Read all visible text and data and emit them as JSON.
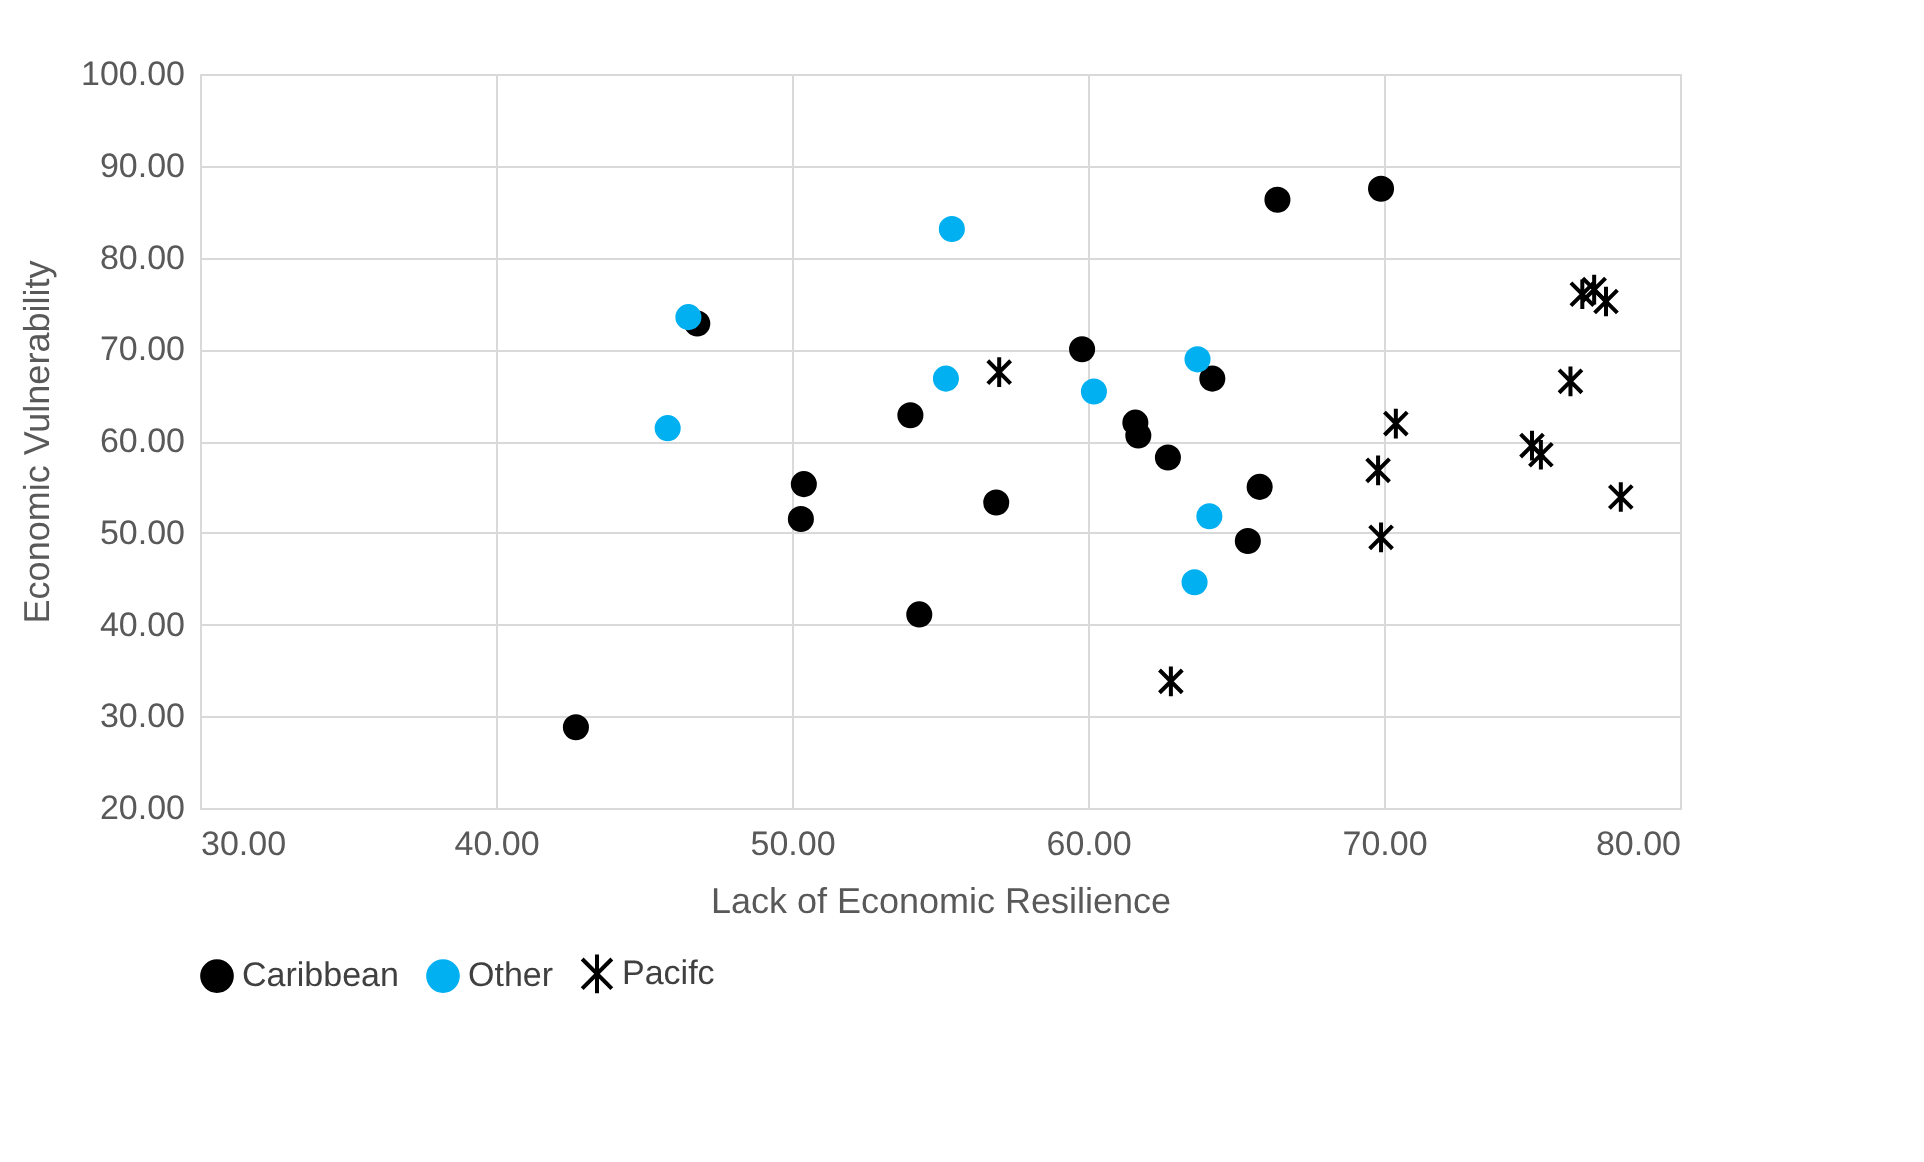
{
  "chart_data": {
    "type": "scatter",
    "xlabel": "Lack of Economic Resilience",
    "ylabel": "Economic Vulnerability",
    "xlim": [
      30,
      80
    ],
    "xticks": [
      {
        "value": 30,
        "label": "30.00"
      },
      {
        "value": 40,
        "label": "40.00"
      },
      {
        "value": 50,
        "label": "50.00"
      },
      {
        "value": 60,
        "label": "60.00"
      },
      {
        "value": 70,
        "label": "70.00"
      },
      {
        "value": 80,
        "label": "80.00"
      }
    ],
    "ylim": [
      20,
      100
    ],
    "yticks": [
      {
        "value": 20,
        "label": "20.00"
      },
      {
        "value": 30,
        "label": "30.00"
      },
      {
        "value": 40,
        "label": "40.00"
      },
      {
        "value": 50,
        "label": "50.00"
      },
      {
        "value": 60,
        "label": "60.00"
      },
      {
        "value": 70,
        "label": "70.00"
      },
      {
        "value": 80,
        "label": "80.00"
      },
      {
        "value": 90,
        "label": "90.00"
      },
      {
        "value": 100,
        "label": "100.00"
      }
    ],
    "grid": true,
    "legend": "bottom",
    "series": [
      {
        "name": "Caribbean",
        "color": "#000000",
        "marker": "circle",
        "x": [
          42.7,
          46.8,
          50.3,
          50.4,
          54.0,
          54.3,
          56.9,
          59.8,
          61.6,
          61.7,
          62.7,
          64.2,
          65.4,
          65.8,
          66.4,
          69.9
        ],
        "values": [
          28.8,
          72.8,
          51.5,
          55.3,
          62.8,
          41.1,
          53.3,
          70.0,
          62.0,
          60.6,
          58.2,
          66.8,
          49.1,
          55.0,
          86.3,
          87.5
        ]
      },
      {
        "name": "Other",
        "color": "#00b0f0",
        "marker": "circle",
        "x": [
          45.8,
          46.5,
          55.2,
          55.4,
          60.2,
          63.6,
          63.7,
          64.1
        ],
        "values": [
          61.4,
          73.5,
          66.8,
          83.1,
          65.4,
          44.6,
          68.9,
          51.8
        ]
      },
      {
        "name": "Pacifc",
        "color": "#000000",
        "marker": "cross",
        "x": [
          57.0,
          62.8,
          69.8,
          69.9,
          70.4,
          75.0,
          75.3,
          76.3,
          76.7,
          77.1,
          77.5,
          78.0
        ],
        "values": [
          67.5,
          33.8,
          56.8,
          49.5,
          61.9,
          59.5,
          58.5,
          66.5,
          76.0,
          76.5,
          75.2,
          53.9
        ]
      }
    ]
  }
}
